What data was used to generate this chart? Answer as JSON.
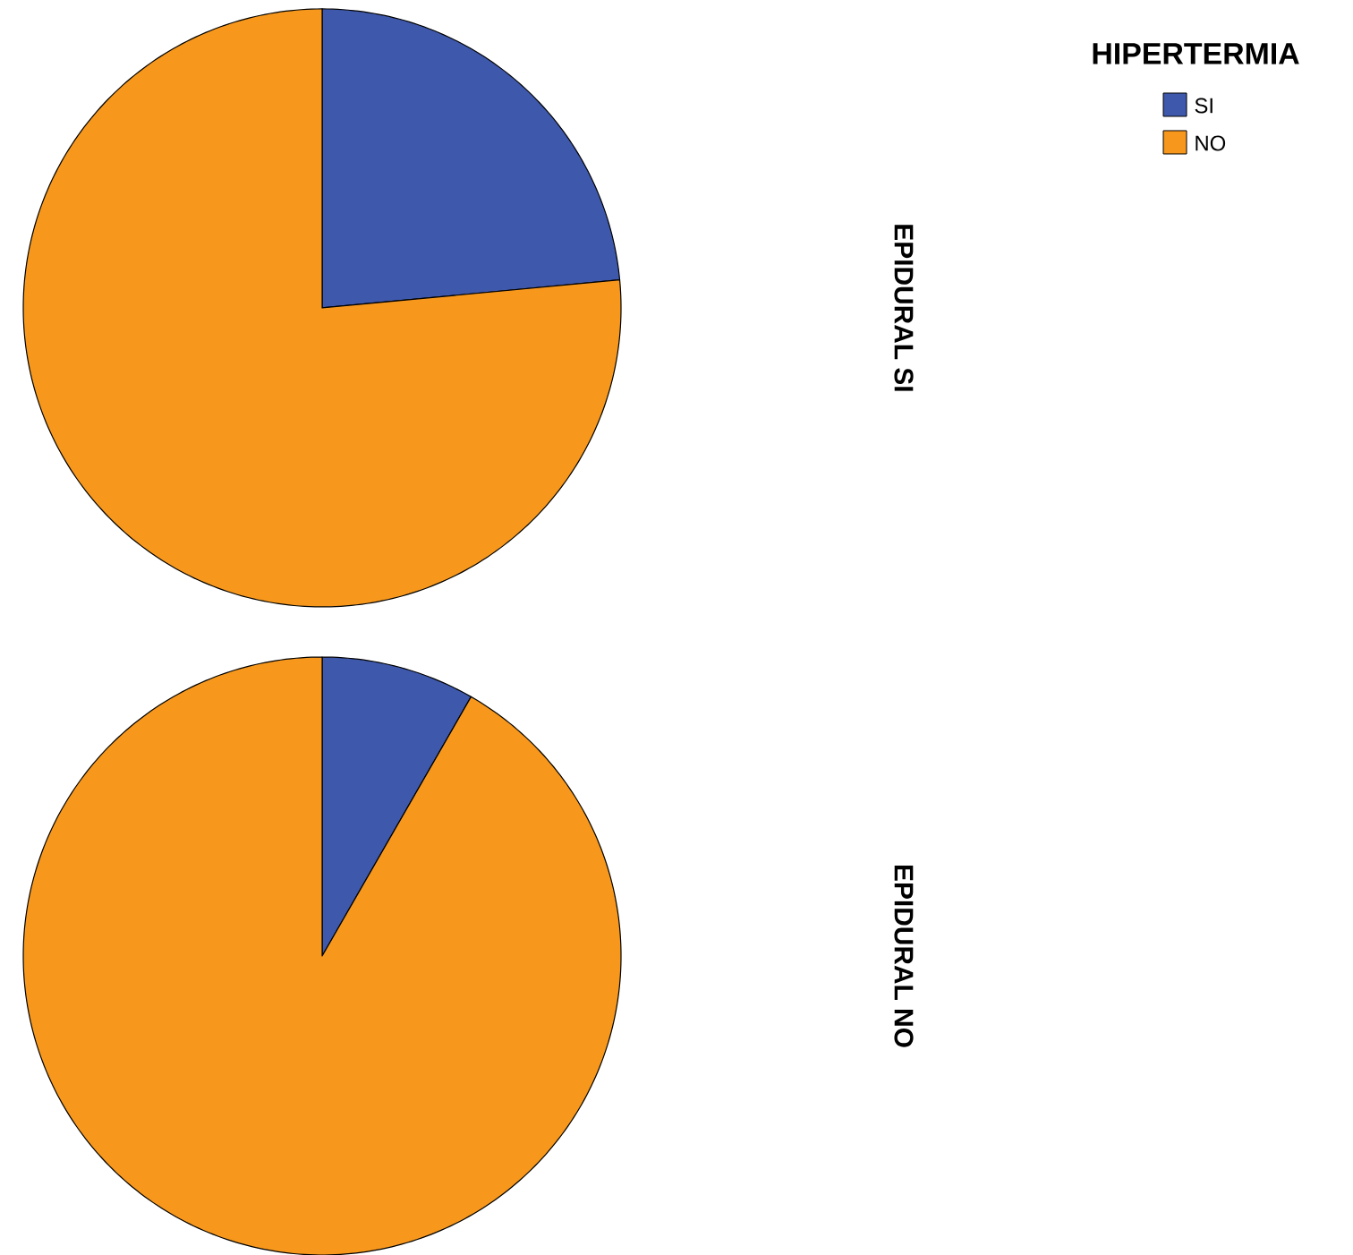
{
  "chart_data": [
    {
      "type": "pie",
      "title": "EPIDURAL SI",
      "legend_title": "HIPERTERMIA",
      "legend": "top right",
      "categories": [
        "SI",
        "NO"
      ],
      "values": [
        23.5,
        76.5
      ],
      "colors": [
        "#3e58ac",
        "#f7981d"
      ]
    },
    {
      "type": "pie",
      "title": "EPIDURAL NO",
      "categories": [
        null,
        null
      ],
      "values": [
        8.3,
        91.7
      ],
      "colors": [
        "#3e58ac",
        "#f7981d"
      ]
    }
  ]
}
